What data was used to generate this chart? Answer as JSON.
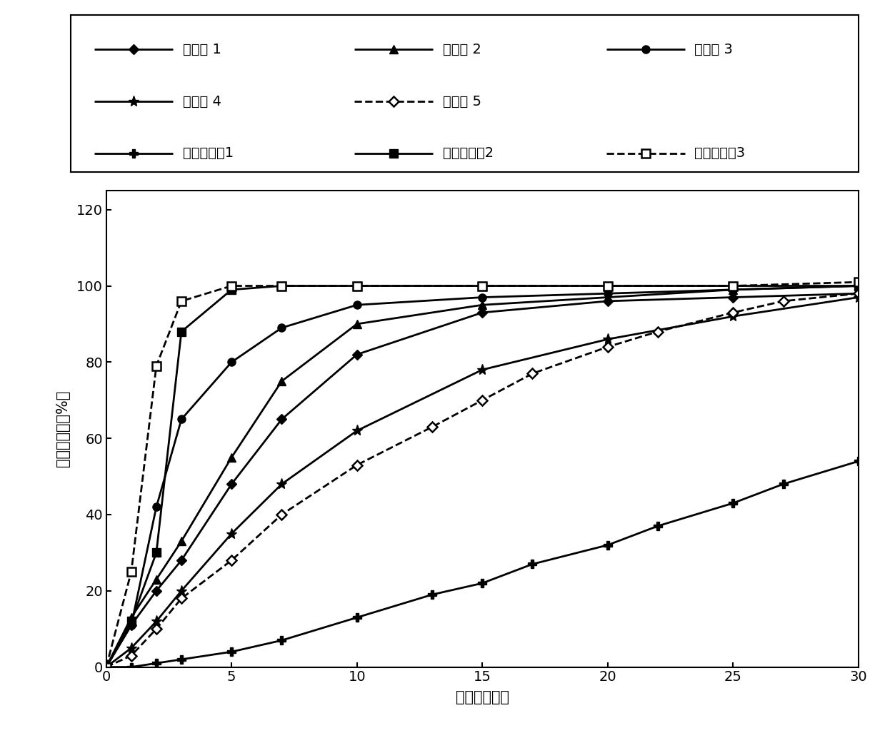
{
  "xlabel": "时间（分钟）",
  "ylabel": "药物溶解度（%）",
  "xlim": [
    0,
    30
  ],
  "ylim": [
    0,
    125
  ],
  "yticks": [
    0,
    20,
    40,
    60,
    80,
    100,
    120
  ],
  "xticks": [
    0,
    5,
    10,
    15,
    20,
    25,
    30
  ],
  "series": [
    {
      "label": "实施例 1",
      "x": [
        0,
        1,
        2,
        3,
        5,
        7,
        10,
        15,
        20,
        25,
        30
      ],
      "y": [
        0,
        11,
        20,
        28,
        48,
        65,
        82,
        93,
        96,
        97,
        98
      ],
      "linestyle": "-",
      "marker": "D",
      "fillstyle": "full",
      "markersize": 7,
      "linewidth": 2.0
    },
    {
      "label": "实施例 2",
      "x": [
        0,
        1,
        2,
        3,
        5,
        7,
        10,
        15,
        20,
        25,
        30
      ],
      "y": [
        0,
        13,
        23,
        33,
        55,
        75,
        90,
        95,
        97,
        99,
        100
      ],
      "linestyle": "-",
      "marker": "^",
      "fillstyle": "full",
      "markersize": 8,
      "linewidth": 2.0
    },
    {
      "label": "实施例 3",
      "x": [
        0,
        1,
        2,
        3,
        5,
        7,
        10,
        15,
        20,
        25,
        30
      ],
      "y": [
        0,
        11,
        42,
        65,
        80,
        89,
        95,
        97,
        98,
        99,
        100
      ],
      "linestyle": "-",
      "marker": "o",
      "fillstyle": "full",
      "markersize": 8,
      "linewidth": 2.0
    },
    {
      "label": "实施例 4",
      "x": [
        0,
        1,
        2,
        3,
        5,
        7,
        10,
        15,
        20,
        25,
        30
      ],
      "y": [
        0,
        5,
        12,
        20,
        35,
        48,
        62,
        78,
        86,
        92,
        97
      ],
      "linestyle": "-",
      "marker": "*",
      "fillstyle": "full",
      "markersize": 11,
      "linewidth": 2.0
    },
    {
      "label": "实施例 5",
      "x": [
        0,
        1,
        2,
        3,
        5,
        7,
        10,
        13,
        15,
        17,
        20,
        22,
        25,
        27,
        30
      ],
      "y": [
        0,
        3,
        10,
        18,
        28,
        40,
        53,
        63,
        70,
        77,
        84,
        88,
        93,
        96,
        98
      ],
      "linestyle": "--",
      "marker": "D",
      "fillstyle": "none",
      "markersize": 7,
      "linewidth": 2.0
    },
    {
      "label": "比较实施例1",
      "x": [
        0,
        1,
        2,
        3,
        5,
        7,
        10,
        13,
        15,
        17,
        20,
        22,
        25,
        27,
        30
      ],
      "y": [
        0,
        0,
        1,
        2,
        4,
        7,
        13,
        19,
        22,
        27,
        32,
        37,
        43,
        48,
        54
      ],
      "linestyle": "-",
      "marker": "P",
      "fillstyle": "full",
      "markersize": 8,
      "linewidth": 2.0
    },
    {
      "label": "比较实施例2",
      "x": [
        0,
        1,
        2,
        3,
        5,
        7,
        10,
        15,
        20,
        25,
        30
      ],
      "y": [
        0,
        12,
        30,
        88,
        99,
        100,
        100,
        100,
        100,
        100,
        100
      ],
      "linestyle": "-",
      "marker": "s",
      "fillstyle": "full",
      "markersize": 8,
      "linewidth": 2.0
    },
    {
      "label": "比较实施例3",
      "x": [
        0,
        1,
        2,
        3,
        5,
        7,
        10,
        15,
        20,
        25,
        30
      ],
      "y": [
        0,
        25,
        79,
        96,
        100,
        100,
        100,
        100,
        100,
        100,
        101
      ],
      "linestyle": "--",
      "marker": "s",
      "fillstyle": "none",
      "markersize": 8,
      "linewidth": 2.0
    }
  ],
  "legend_labels_row1": [
    "实施例 1",
    "实施例 2",
    "实施例 3"
  ],
  "legend_labels_row2": [
    "实施例 4",
    "实施例 5"
  ],
  "legend_labels_row3": [
    "比较实施例1",
    "比较实施例2",
    "比较实施例3"
  ],
  "legend_fontsize": 14,
  "axis_fontsize": 15,
  "tick_fontsize": 14,
  "color": "#000000"
}
